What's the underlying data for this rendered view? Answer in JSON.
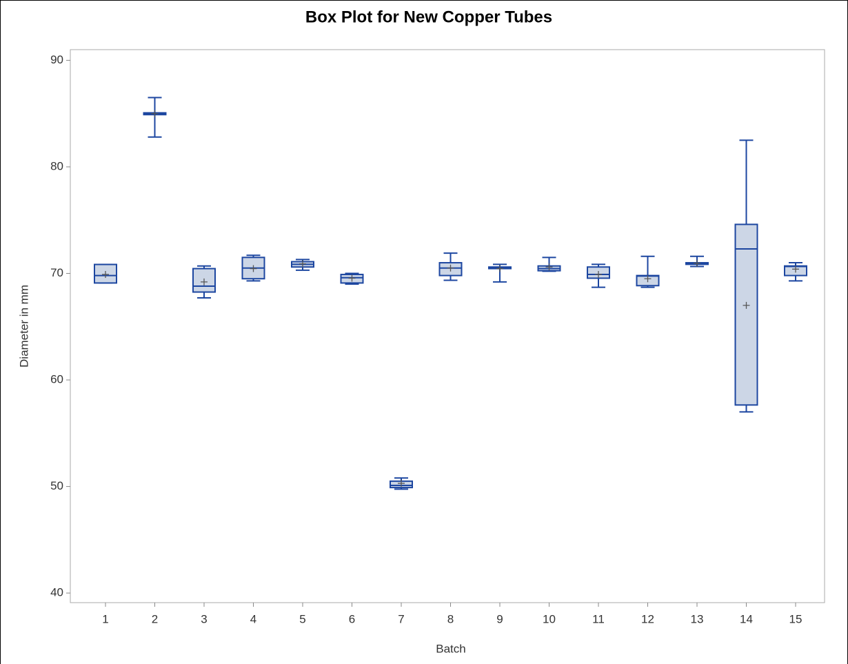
{
  "chart_data": {
    "type": "box",
    "title": "Box Plot for New Copper Tubes",
    "x_label": "Batch",
    "y_label": "Diameter in mm",
    "categories": [
      "1",
      "2",
      "3",
      "4",
      "5",
      "6",
      "7",
      "8",
      "9",
      "10",
      "11",
      "12",
      "13",
      "14",
      "15"
    ],
    "min": [
      69.1,
      82.8,
      67.7,
      69.3,
      70.3,
      69.0,
      49.75,
      69.35,
      69.2,
      70.2,
      68.7,
      68.7,
      70.65,
      57.0,
      69.3
    ],
    "q1": [
      69.1,
      84.9,
      68.25,
      69.5,
      70.6,
      69.1,
      49.9,
      69.8,
      70.45,
      70.25,
      69.55,
      68.85,
      70.85,
      57.65,
      69.8
    ],
    "median": [
      69.8,
      85.0,
      68.8,
      70.5,
      70.85,
      69.6,
      50.1,
      70.5,
      70.5,
      70.45,
      69.9,
      69.75,
      70.95,
      72.3,
      70.65
    ],
    "q3": [
      70.84,
      85.07,
      70.45,
      71.5,
      71.1,
      69.9,
      50.5,
      71.0,
      70.6,
      70.7,
      70.6,
      69.8,
      71.0,
      74.6,
      70.7
    ],
    "max": [
      70.84,
      86.5,
      70.7,
      71.7,
      71.3,
      70.0,
      50.8,
      71.9,
      70.85,
      71.5,
      70.85,
      71.6,
      71.6,
      82.5,
      71.0
    ],
    "mean": [
      69.9,
      85.0,
      69.2,
      70.45,
      70.9,
      69.55,
      50.3,
      70.5,
      70.45,
      70.6,
      69.9,
      69.5,
      70.95,
      67.0,
      70.4
    ],
    "color": "#1c46a0",
    "fill": "#ccd6e6",
    "ylim": [
      39.1,
      91
    ],
    "yticks": [
      40,
      50,
      60,
      70,
      80,
      90
    ]
  }
}
